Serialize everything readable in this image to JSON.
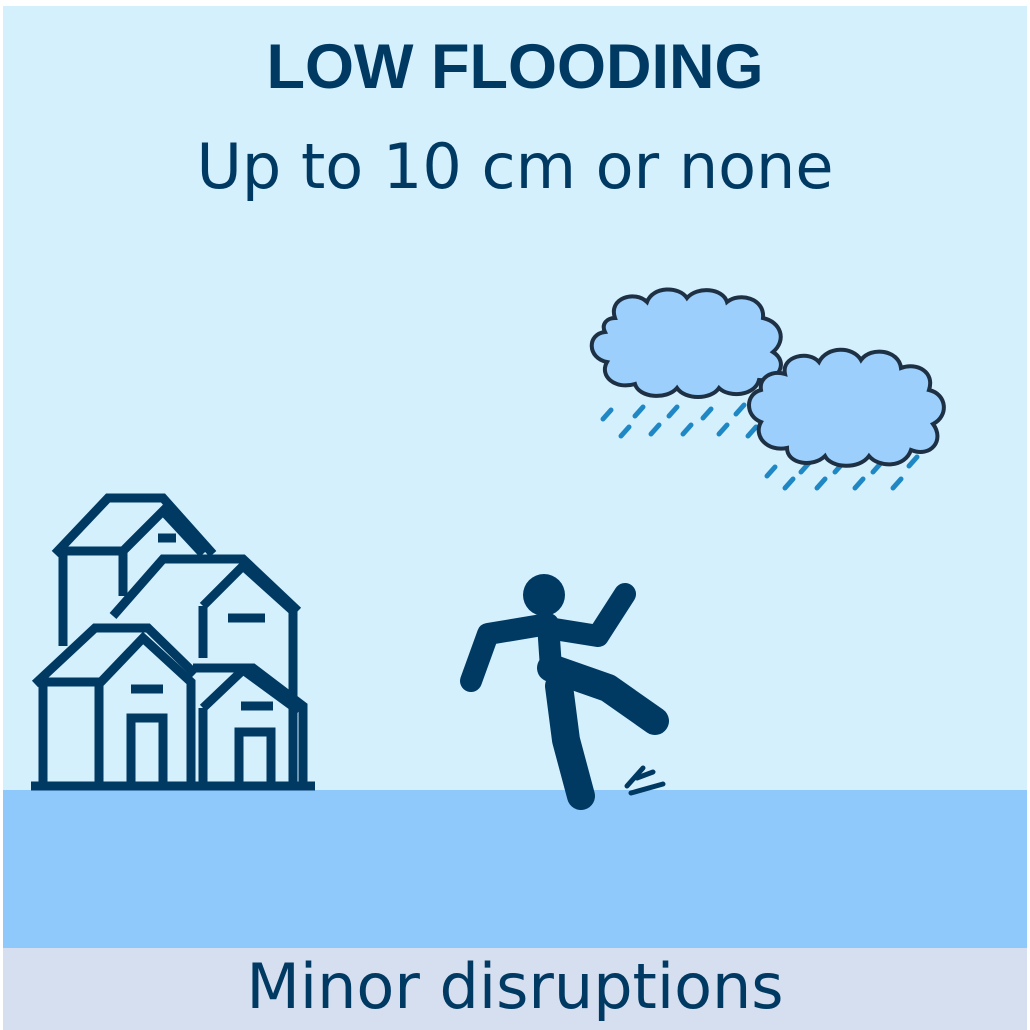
{
  "title": "LOW FLOODING",
  "subtitle": "Up to 10 cm or none",
  "footer": "Minor disruptions",
  "icons": [
    "houses-icon",
    "person-slipping-icon",
    "water-splash-icon",
    "rain-cloud-icon"
  ],
  "colors": {
    "sky": "#d4f0fd",
    "water": "#8fc8fb",
    "footer_band": "#d5dfef",
    "ink": "#003a63",
    "cloud": "#9ccffb",
    "rain": "#1f88c4"
  }
}
